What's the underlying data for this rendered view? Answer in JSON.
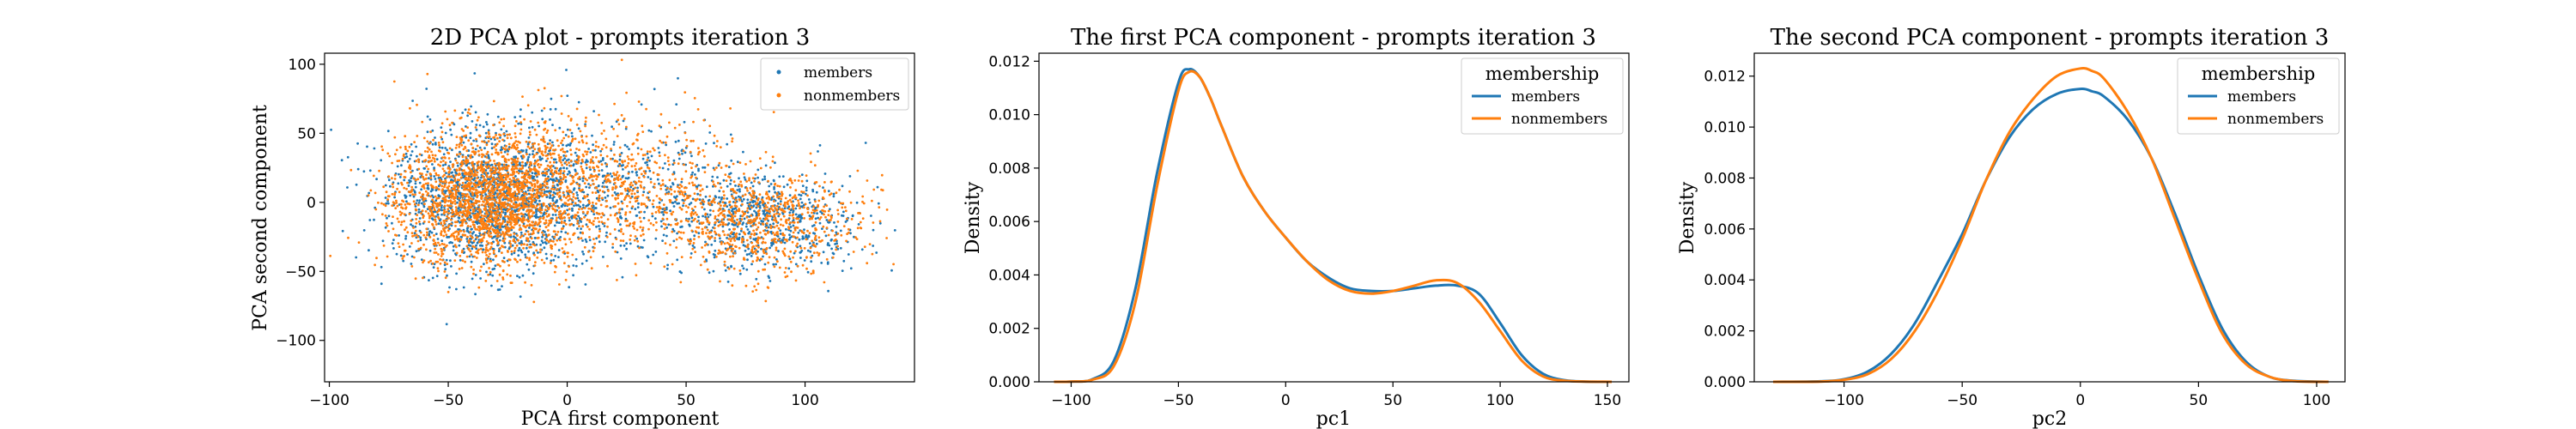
{
  "colors": {
    "members": "#1f77b4",
    "nonmembers": "#ff7f0e"
  },
  "chart_data": [
    {
      "type": "scatter",
      "title": "2D PCA plot - prompts iteration 3",
      "xlabel": "PCA first component",
      "ylabel": "PCA second component",
      "xlim": [
        -102,
        146
      ],
      "ylim": [
        -130,
        108
      ],
      "xticks": [
        -100,
        -50,
        0,
        50,
        100
      ],
      "yticks": [
        -100,
        -50,
        0,
        50,
        100
      ],
      "legend_position": "top-right",
      "legend_title": "",
      "series": [
        {
          "name": "members",
          "color": "#1f77b4",
          "point_cloud": "dense cloud: main cluster centered near (-35, 0), secondary lobe near (85, -15)"
        },
        {
          "name": "nonmembers",
          "color": "#ff7f0e",
          "point_cloud": "dense cloud: main cluster centered near (-35, 0), secondary lobe near (85, -15)"
        }
      ]
    },
    {
      "type": "line",
      "title": "The first PCA component - prompts iteration 3",
      "xlabel": "pc1",
      "ylabel": "Density",
      "xlim": [
        -115,
        160
      ],
      "ylim": [
        0,
        0.0123
      ],
      "xticks": [
        -100,
        -50,
        0,
        50,
        100,
        150
      ],
      "yticks": [
        0.0,
        0.002,
        0.004,
        0.006,
        0.008,
        0.01,
        0.012
      ],
      "ytick_labels": [
        "0.000",
        "0.002",
        "0.004",
        "0.006",
        "0.008",
        "0.010",
        "0.012"
      ],
      "legend_position": "top-right",
      "legend_title": "membership",
      "x": [
        -108,
        -100,
        -90,
        -80,
        -70,
        -60,
        -50,
        -45,
        -40,
        -35,
        -30,
        -20,
        -10,
        0,
        10,
        20,
        30,
        40,
        50,
        60,
        70,
        80,
        90,
        100,
        110,
        120,
        130,
        140,
        152
      ],
      "series": [
        {
          "name": "members",
          "color": "#1f77b4",
          "values": [
            0.0,
            1e-05,
            0.0001,
            0.0008,
            0.0035,
            0.0078,
            0.0112,
            0.0117,
            0.0114,
            0.0106,
            0.0096,
            0.0077,
            0.0064,
            0.0054,
            0.0045,
            0.0039,
            0.0035,
            0.0034,
            0.0034,
            0.0035,
            0.0036,
            0.0036,
            0.0033,
            0.0022,
            0.001,
            0.0003,
            6e-05,
            1e-05,
            0.0
          ]
        },
        {
          "name": "nonmembers",
          "color": "#ff7f0e",
          "values": [
            0.0,
            1e-05,
            8e-05,
            0.0006,
            0.003,
            0.0073,
            0.0109,
            0.0116,
            0.0114,
            0.0106,
            0.0096,
            0.0077,
            0.0064,
            0.0054,
            0.0045,
            0.0038,
            0.0034,
            0.0033,
            0.0034,
            0.0036,
            0.0038,
            0.0037,
            0.003,
            0.0019,
            0.0008,
            0.0002,
            4e-05,
            1e-05,
            0.0
          ]
        }
      ]
    },
    {
      "type": "line",
      "title": "The second PCA component - prompts iteration 3",
      "xlabel": "pc2",
      "ylabel": "Density",
      "xlim": [
        -138,
        112
      ],
      "ylim": [
        0,
        0.0129
      ],
      "xticks": [
        -100,
        -50,
        0,
        50,
        100
      ],
      "yticks": [
        0.0,
        0.002,
        0.004,
        0.006,
        0.008,
        0.01,
        0.012
      ],
      "ytick_labels": [
        "0.000",
        "0.002",
        "0.004",
        "0.006",
        "0.008",
        "0.010",
        "0.012"
      ],
      "legend_position": "top-right",
      "legend_title": "membership",
      "x": [
        -130,
        -110,
        -100,
        -90,
        -80,
        -70,
        -60,
        -50,
        -40,
        -30,
        -20,
        -10,
        0,
        5,
        10,
        20,
        30,
        40,
        50,
        60,
        70,
        80,
        90,
        105
      ],
      "series": [
        {
          "name": "members",
          "color": "#1f77b4",
          "values": [
            0.0,
            2e-05,
            0.0001,
            0.0004,
            0.0011,
            0.0023,
            0.004,
            0.0058,
            0.0079,
            0.0096,
            0.0107,
            0.0113,
            0.0115,
            0.0114,
            0.0112,
            0.0103,
            0.0088,
            0.0066,
            0.0042,
            0.0021,
            0.0008,
            0.0002,
            4e-05,
            0.0
          ]
        },
        {
          "name": "nonmembers",
          "color": "#ff7f0e",
          "values": [
            0.0,
            1e-05,
            8e-05,
            0.0003,
            0.0009,
            0.002,
            0.0036,
            0.0056,
            0.0079,
            0.0098,
            0.0111,
            0.012,
            0.0123,
            0.0122,
            0.0119,
            0.0106,
            0.0088,
            0.0064,
            0.004,
            0.0019,
            0.0007,
            0.0002,
            3e-05,
            0.0
          ]
        }
      ]
    }
  ]
}
